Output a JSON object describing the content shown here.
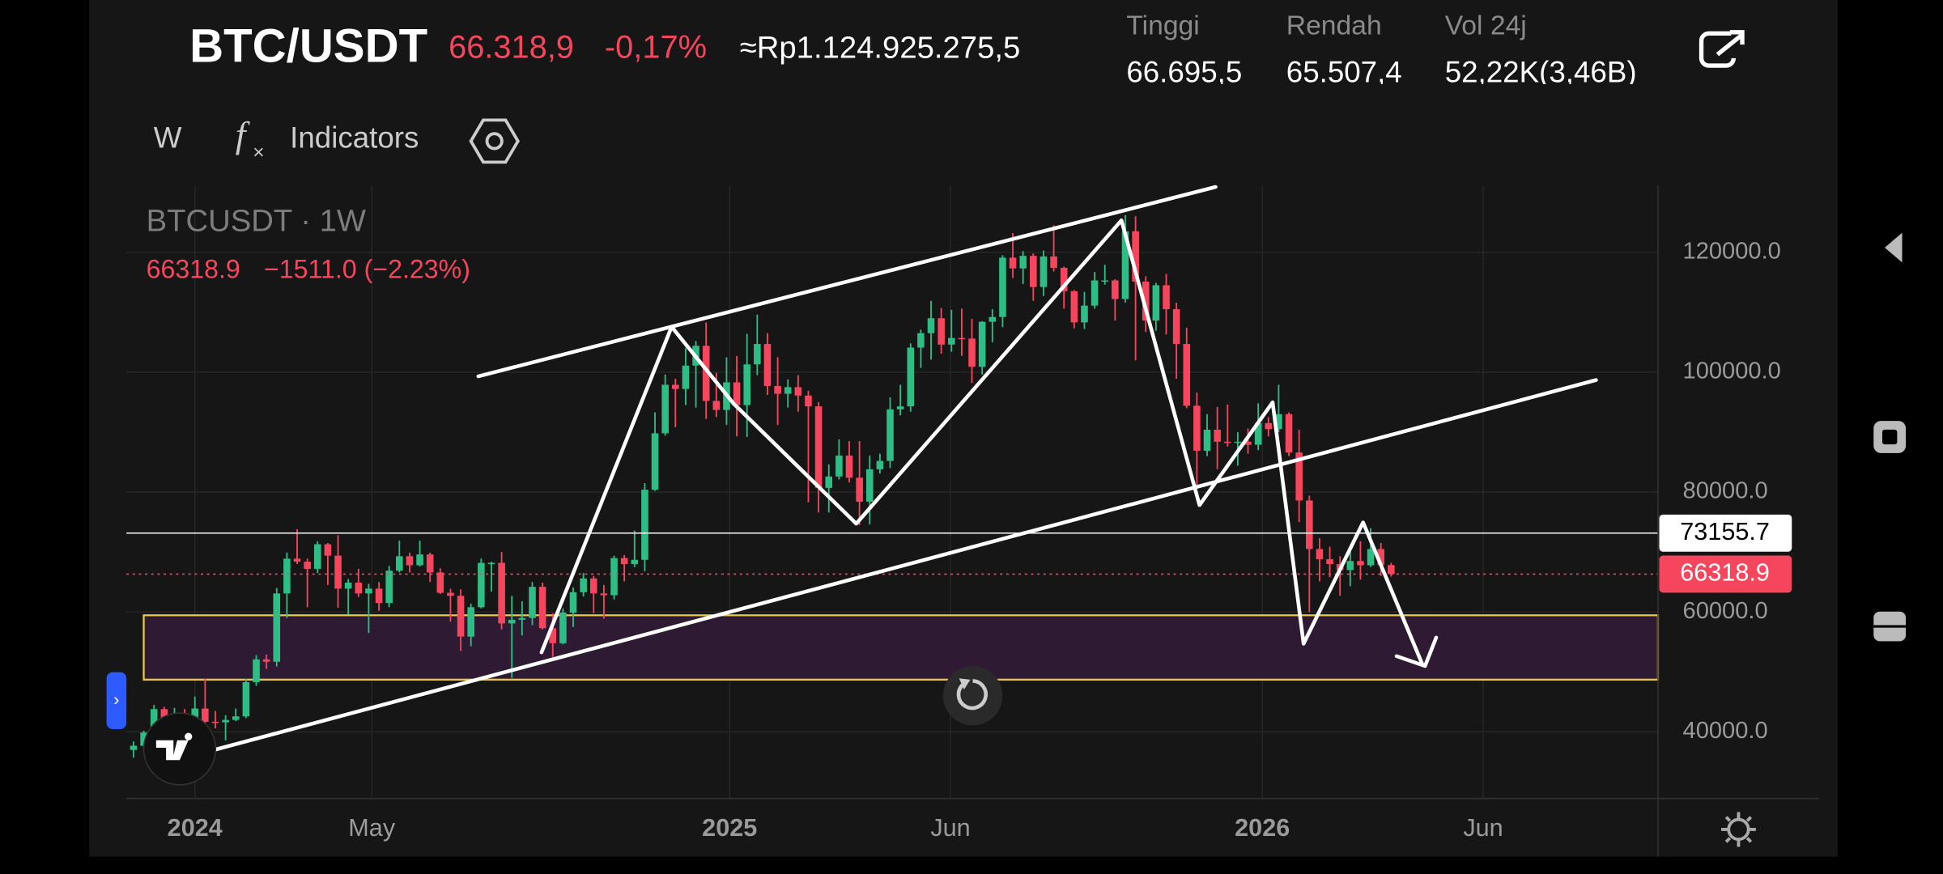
{
  "header": {
    "symbol": "BTC/USDT",
    "price": "66.318,9",
    "change": "-0,17%",
    "fiat": "≈Rp1.124.925.275,5",
    "stats": [
      {
        "label": "Tinggi",
        "value": "66.695,5"
      },
      {
        "label": "Rendah",
        "value": "65.507,4"
      },
      {
        "label": "Vol 24j",
        "value": "52,22K(3,46B)"
      }
    ]
  },
  "toolbar": {
    "interval": "W",
    "indicators": "Indicators"
  },
  "chart_data": {
    "type": "candlestick",
    "title": "BTCUSDT · 1W",
    "last": "66318.9",
    "last_change": "−1511.0 (−2.23%)",
    "up_color": "#2ebd85",
    "down_color": "#f6465d",
    "x": [
      0,
      1,
      2,
      3,
      4,
      5,
      6,
      7,
      8,
      9,
      10,
      11,
      12,
      13,
      14,
      15,
      16,
      17,
      18,
      19,
      20,
      21,
      22,
      23,
      24,
      25,
      26,
      27,
      28,
      29,
      30,
      31,
      32,
      33,
      34,
      35,
      36,
      37,
      38,
      39,
      40,
      41,
      42,
      43,
      44,
      45,
      46,
      47,
      48,
      49,
      50,
      51,
      52,
      53,
      54,
      55,
      56,
      57,
      58,
      59,
      60,
      61,
      62,
      63,
      64,
      65,
      66,
      67,
      68,
      69,
      70,
      71,
      72,
      73,
      74,
      75,
      76,
      77,
      78,
      79,
      80,
      81,
      82,
      83,
      84,
      85,
      86,
      87,
      88,
      89,
      90,
      91,
      92,
      93,
      94,
      95,
      96,
      97,
      98,
      99,
      100,
      101,
      102,
      103,
      104,
      105,
      106,
      107,
      108,
      109,
      110,
      111,
      112,
      113,
      114,
      115,
      116,
      117,
      118,
      119,
      120,
      121,
      122,
      123
    ],
    "open": [
      37000,
      37700,
      39900,
      43800,
      41400,
      43000,
      42300,
      43900,
      41700,
      41600,
      42000,
      42600,
      48300,
      52100,
      51700,
      63100,
      68900,
      68400,
      67200,
      71300,
      69400,
      63900,
      64900,
      63100,
      63900,
      61500,
      66900,
      69300,
      67800,
      69600,
      66600,
      63200,
      62700,
      55900,
      60800,
      68200,
      68200,
      58100,
      58700,
      59000,
      64200,
      57300,
      54800,
      59900,
      63300,
      65600,
      63100,
      62800,
      69000,
      68000,
      68700,
      80400,
      89800,
      97900,
      97200,
      101100,
      104400,
      95200,
      93700,
      98300,
      94500,
      101300,
      104700,
      97700,
      96400,
      97500,
      96100,
      94300,
      80700,
      82600,
      86100,
      82400,
      78400,
      83800,
      85200,
      93800,
      94300,
      104100,
      106500,
      109000,
      104600,
      105700,
      105600,
      100900,
      108400,
      109200,
      119100,
      117300,
      119400,
      114200,
      119300,
      117400,
      113500,
      108300,
      111100,
      115300,
      115300,
      112200,
      123500,
      115100,
      108600,
      114500,
      110500,
      104700,
      94400,
      86900,
      90400,
      88400,
      88200,
      88400,
      87900,
      91500,
      90500,
      93000,
      86600,
      78600,
      70500,
      68800,
      68000,
      67000,
      68500,
      67800,
      70500,
      67830
    ],
    "high": [
      38400,
      40200,
      44500,
      44200,
      44000,
      43800,
      45900,
      48900,
      43500,
      42800,
      43900,
      48900,
      52800,
      52900,
      64000,
      69900,
      73800,
      68900,
      71800,
      71500,
      72800,
      65500,
      67200,
      64700,
      65000,
      67700,
      71900,
      69900,
      71900,
      69900,
      67300,
      63900,
      63800,
      61400,
      68900,
      68400,
      70000,
      62700,
      61800,
      65000,
      64900,
      59800,
      60600,
      64100,
      66500,
      66000,
      64500,
      69400,
      69500,
      73600,
      81500,
      93300,
      99600,
      98900,
      104000,
      105200,
      108300,
      99900,
      102500,
      102700,
      106400,
      109600,
      106500,
      102500,
      98800,
      99500,
      96900,
      95000,
      84600,
      88800,
      88500,
      88500,
      86100,
      86400,
      95800,
      97900,
      104800,
      107100,
      111900,
      110700,
      110400,
      110600,
      108900,
      108500,
      110500,
      119500,
      123200,
      120200,
      119800,
      120300,
      124500,
      117600,
      113700,
      113400,
      116700,
      117900,
      115500,
      126200,
      126000,
      116000,
      114900,
      116400,
      111600,
      107400,
      96600,
      93000,
      94200,
      94600,
      90000,
      90600,
      94800,
      92500,
      97900,
      93300,
      90400,
      79400,
      72300,
      70900,
      69300,
      70600,
      71800,
      74000,
      71500,
      68200
    ],
    "low": [
      35700,
      37500,
      39500,
      40200,
      40500,
      41300,
      40700,
      41500,
      40600,
      38600,
      41800,
      42300,
      47700,
      50500,
      50900,
      59000,
      68000,
      60800,
      66500,
      64500,
      60700,
      59600,
      62500,
      56500,
      60200,
      60800,
      66600,
      66600,
      67600,
      65000,
      63000,
      58400,
      53500,
      54300,
      60600,
      63400,
      57100,
      49000,
      56100,
      57800,
      57100,
      52500,
      54600,
      57500,
      62600,
      59800,
      58900,
      62100,
      65100,
      67500,
      66800,
      80200,
      89400,
      90800,
      94500,
      94100,
      92200,
      92500,
      91200,
      89300,
      89200,
      99500,
      96200,
      91200,
      94100,
      93400,
      78300,
      76600,
      76600,
      82100,
      81600,
      74500,
      74600,
      83100,
      84000,
      92800,
      93400,
      100700,
      102100,
      103100,
      103400,
      102700,
      98200,
      99600,
      105000,
      107500,
      115700,
      114700,
      111900,
      112700,
      116800,
      110600,
      107300,
      107200,
      110600,
      114600,
      108600,
      111600,
      102000,
      106700,
      106900,
      106300,
      98900,
      94000,
      80600,
      86000,
      83800,
      87600,
      84400,
      86400,
      87000,
      89300,
      90000,
      86000,
      75000,
      60000,
      65100,
      65800,
      62700,
      64300,
      65400,
      67500,
      66000,
      65900
    ],
    "close": [
      37700,
      39900,
      43800,
      41400,
      43000,
      42300,
      43900,
      41700,
      41600,
      42000,
      42600,
      48300,
      52100,
      51700,
      63100,
      68900,
      68400,
      67200,
      71300,
      69400,
      63900,
      64900,
      63100,
      63900,
      61500,
      66900,
      69300,
      67800,
      69600,
      66600,
      63200,
      62700,
      55900,
      60800,
      68200,
      68200,
      58100,
      58700,
      59000,
      64200,
      57300,
      54800,
      59900,
      63300,
      65600,
      63100,
      62800,
      69000,
      68000,
      68700,
      80400,
      89800,
      97900,
      97200,
      101100,
      104400,
      95200,
      93700,
      98300,
      94500,
      101300,
      104700,
      97700,
      96400,
      97500,
      96100,
      94300,
      80700,
      82600,
      86100,
      82400,
      78400,
      83800,
      85200,
      93800,
      94300,
      104100,
      106500,
      109000,
      104600,
      105700,
      105600,
      100900,
      108400,
      109200,
      119100,
      117300,
      119400,
      114200,
      119300,
      117400,
      113500,
      108300,
      111100,
      115300,
      115300,
      112200,
      123500,
      115100,
      108600,
      114500,
      110500,
      104700,
      94400,
      86900,
      90400,
      88400,
      88200,
      88400,
      87900,
      91500,
      90500,
      93000,
      86600,
      78600,
      70500,
      68800,
      68000,
      67000,
      68500,
      67800,
      70500,
      67830,
      66318.9
    ],
    "xlim": [
      -0.7,
      149.1
    ],
    "xticks": [
      {
        "value": 6,
        "label": "2024"
      },
      {
        "value": 23.3,
        "label": "May"
      },
      {
        "value": 58.3,
        "label": "2025"
      },
      {
        "value": 79.9,
        "label": "Jun"
      },
      {
        "value": 110.4,
        "label": "2026"
      },
      {
        "value": 132,
        "label": "Jun"
      }
    ],
    "ylim": [
      28900,
      131100
    ],
    "yticks": [
      {
        "value": 40000,
        "label": "40000.0"
      },
      {
        "value": 60000,
        "label": "60000.0"
      },
      {
        "value": 80000,
        "label": "80000.0"
      },
      {
        "value": 100000,
        "label": "100000.0"
      },
      {
        "value": 120000,
        "label": "120000.0"
      }
    ],
    "grid": true,
    "price_lines": [
      {
        "value": 73155.7,
        "color": "#ffffff"
      },
      {
        "value": 66318.9,
        "color": "#f6465d"
      }
    ]
  }
}
